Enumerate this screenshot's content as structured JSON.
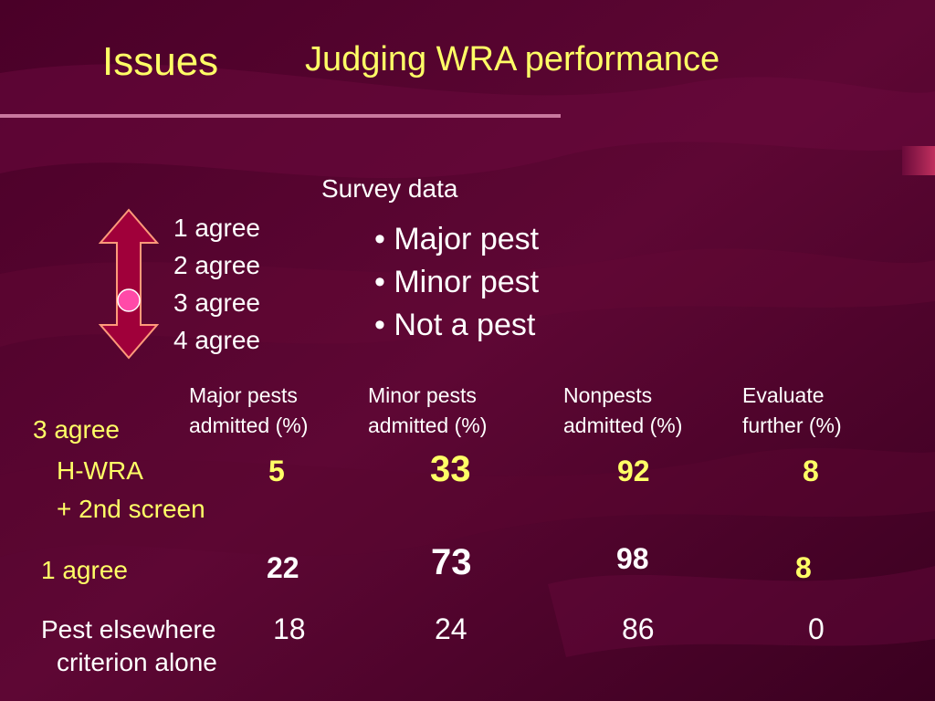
{
  "slide": {
    "title_left": "Issues",
    "title_main": "Judging WRA performance",
    "survey_title": "Survey data",
    "agree_levels": [
      "1 agree",
      "2 agree",
      "3 agree",
      "4 agree"
    ],
    "bullets": [
      "• Major pest",
      "• Minor pest",
      "• Not a pest"
    ],
    "columns": [
      "Major pests\nadmitted (%)",
      "Minor pests\nadmitted (%)",
      "Nonpests\nadmitted (%)",
      "Evaluate\nfurther (%)"
    ],
    "rows": [
      {
        "label_top": "3 agree",
        "label_lines": [
          "H-WRA",
          "+ 2nd screen"
        ],
        "values": [
          "5",
          "33",
          "92",
          "8"
        ]
      },
      {
        "label_lines": [
          "1 agree"
        ],
        "values": [
          "22",
          "73",
          "98",
          "8"
        ]
      },
      {
        "label_lines": [
          "Pest elsewhere",
          "criterion alone"
        ],
        "values": [
          "18",
          "24",
          "86",
          "0"
        ]
      }
    ]
  },
  "colors": {
    "background": "#3a0020",
    "title": "#ffff66",
    "text": "#ffffff",
    "accent_arrow": "#a0003a",
    "arrow_outline": "#ff9a7a",
    "marker": "#ff4aa8"
  },
  "icons": {
    "scale_arrow": "double-headed-arrow",
    "scale_marker": "circle-marker"
  }
}
